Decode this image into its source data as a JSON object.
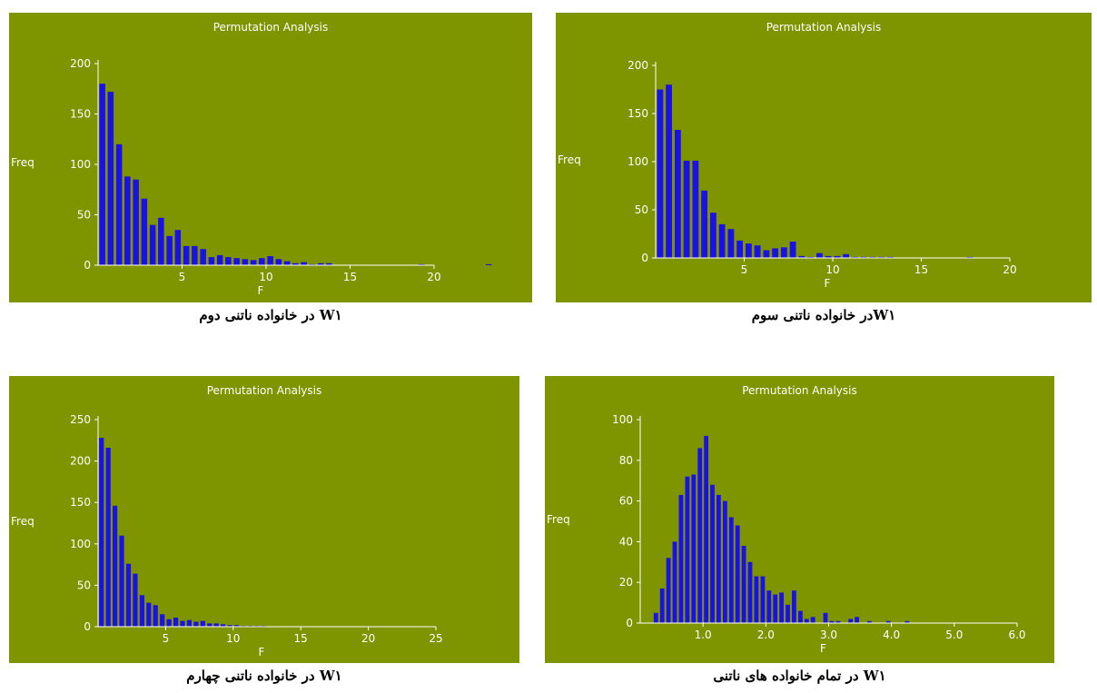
{
  "colors": {
    "panel_bg": "#7f9500",
    "bar": "#1a10e8",
    "text": "#ffffff",
    "axis": "#ffffff"
  },
  "chart_data": [
    {
      "type": "bar",
      "title": "Permutation Analysis",
      "xlabel": "F",
      "ylabel": "Freq",
      "caption": "W۱ در خانواده ناتنی دوم",
      "xlim": [
        0,
        20
      ],
      "ylim": [
        0,
        200
      ],
      "xticks": [
        5,
        10,
        15,
        20
      ],
      "yticks": [
        0,
        50,
        100,
        150,
        200
      ],
      "bin_start": 0.25,
      "bin_width": 0.5,
      "values": [
        180,
        172,
        120,
        88,
        85,
        66,
        40,
        47,
        29,
        35,
        19,
        19,
        16,
        8,
        10,
        8,
        7,
        6,
        5,
        7,
        9,
        6,
        4,
        2,
        3,
        1,
        2,
        2,
        0,
        0,
        0,
        0,
        0,
        0,
        0,
        0,
        0,
        0,
        1,
        0,
        0,
        0,
        0,
        0,
        0,
        0,
        1,
        0,
        0,
        0,
        0,
        0,
        0,
        0,
        0,
        0,
        0,
        0,
        0,
        0,
        0,
        0,
        0,
        0,
        0,
        0,
        0,
        0,
        0,
        0,
        0,
        0,
        0,
        0,
        0,
        0,
        0,
        0,
        0
      ]
    },
    {
      "type": "bar",
      "title": "Permutation Analysis",
      "xlabel": "F",
      "ylabel": "Freq",
      "caption": "W۱در خانواده ناتنی سوم",
      "xlim": [
        0,
        20
      ],
      "ylim": [
        0,
        200
      ],
      "xticks": [
        5,
        10,
        15,
        20
      ],
      "yticks": [
        0,
        50,
        100,
        150,
        200
      ],
      "bin_start": 0.25,
      "bin_width": 0.5,
      "values": [
        175,
        180,
        133,
        101,
        101,
        70,
        47,
        35,
        30,
        18,
        15,
        13,
        8,
        10,
        11,
        17,
        2,
        1,
        5,
        2,
        2,
        4,
        1,
        1,
        1,
        1,
        1,
        0,
        0,
        0,
        0,
        0,
        0,
        0,
        0,
        1,
        0,
        0,
        0,
        0,
        0,
        0,
        0,
        0,
        0,
        0,
        0,
        0,
        0,
        0,
        0,
        0,
        0,
        0,
        0,
        0,
        0,
        0,
        0,
        0,
        0,
        0,
        0,
        0,
        0,
        0,
        0,
        0,
        0,
        0,
        0,
        0,
        0,
        0,
        0,
        0,
        0,
        0,
        0
      ]
    },
    {
      "type": "bar",
      "title": "Permutation Analysis",
      "xlabel": "F",
      "ylabel": "Freq",
      "caption": "W۱ در خانواده ناتنی چهارم",
      "xlim": [
        0,
        25
      ],
      "ylim": [
        0,
        250
      ],
      "xticks": [
        5,
        10,
        15,
        20,
        25
      ],
      "yticks": [
        0,
        50,
        100,
        150,
        200,
        250
      ],
      "bin_start": 0.25,
      "bin_width": 0.5,
      "values": [
        228,
        216,
        146,
        110,
        76,
        64,
        38,
        29,
        26,
        15,
        9,
        11,
        7,
        8,
        6,
        7,
        4,
        4,
        3,
        2,
        2,
        1,
        1,
        1,
        1,
        0,
        0,
        0,
        0,
        0,
        0,
        0,
        0,
        0,
        0,
        0,
        0,
        0,
        0,
        0,
        0,
        0,
        0,
        0,
        0,
        0,
        0,
        0,
        0,
        0,
        0,
        0,
        0,
        0,
        0,
        0,
        0,
        0,
        0,
        0,
        0,
        0,
        0,
        0,
        0,
        0,
        0,
        0,
        0,
        0,
        0,
        0,
        0,
        0,
        0,
        0,
        0,
        0,
        0,
        0
      ]
    },
    {
      "type": "bar",
      "title": "Permutation Analysis",
      "xlabel": "F",
      "ylabel": "Freq",
      "caption": "W۱ در تمام خانواده های ناتنی",
      "xlim": [
        0,
        6
      ],
      "ylim": [
        0,
        100
      ],
      "xticks": [
        1.0,
        2.0,
        3.0,
        4.0,
        5.0,
        6.0
      ],
      "xtick_labels": [
        "1.0",
        "2.0",
        "3.0",
        "4.0",
        "5.0",
        "6.0"
      ],
      "yticks": [
        0,
        20,
        40,
        60,
        80,
        100
      ],
      "bin_start": 0.25,
      "bin_width": 0.1,
      "values": [
        5,
        17,
        32,
        40,
        63,
        72,
        73,
        86,
        92,
        68,
        63,
        60,
        52,
        48,
        38,
        30,
        23,
        23,
        16,
        14,
        15,
        9,
        16,
        6,
        2,
        3,
        0,
        5,
        1,
        1,
        0,
        2,
        3,
        0,
        1,
        0,
        0,
        1,
        0,
        0,
        1,
        0,
        0,
        0,
        0,
        0,
        0,
        0,
        0,
        0,
        0,
        0
      ]
    }
  ]
}
